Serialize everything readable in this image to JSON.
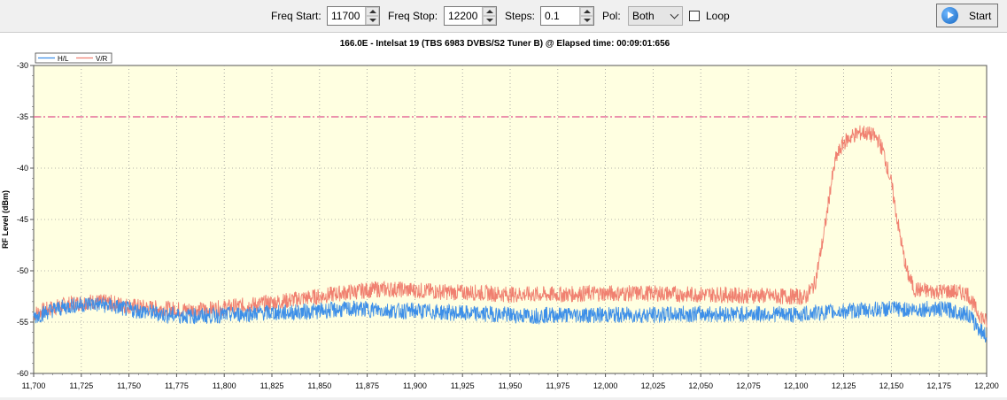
{
  "toolbar": {
    "freq_start_label": "Freq Start:",
    "freq_start_value": "11700",
    "freq_stop_label": "Freq Stop:",
    "freq_stop_value": "12200",
    "steps_label": "Steps:",
    "steps_value": "0.1",
    "pol_label": "Pol:",
    "pol_value": "Both",
    "loop_label": "Loop",
    "loop_checked": false,
    "start_label": "Start"
  },
  "chart_data": {
    "type": "line",
    "title": "166.0E - Intelsat 19 (TBS 6983 DVBS/S2 Tuner B) @ Elapsed time: 00:09:01:656",
    "xlabel": "",
    "ylabel": "RF Level (dBm)",
    "xlim": [
      11700,
      12200
    ],
    "ylim": [
      -60,
      -30
    ],
    "x_ticks": [
      "11,700",
      "11,725",
      "11,750",
      "11,775",
      "11,800",
      "11,825",
      "11,850",
      "11,875",
      "11,900",
      "11,925",
      "11,950",
      "11,975",
      "12,000",
      "12,025",
      "12,050",
      "12,075",
      "12,100",
      "12,125",
      "12,150",
      "12,175",
      "12,200"
    ],
    "y_ticks": [
      "-30",
      "-35",
      "-40",
      "-45",
      "-50",
      "-55",
      "-60"
    ],
    "grid": true,
    "legend_position": "top-left",
    "threshold": {
      "y": -35,
      "color": "#e0508c"
    },
    "series": [
      {
        "name": "H/L",
        "color": "#3d8fe8",
        "x": [
          11700,
          11710,
          11720,
          11730,
          11740,
          11750,
          11760,
          11770,
          11780,
          11790,
          11800,
          11810,
          11820,
          11830,
          11840,
          11850,
          11860,
          11870,
          11880,
          11890,
          11900,
          11910,
          11920,
          11930,
          11940,
          11950,
          11960,
          11970,
          11980,
          11990,
          12000,
          12010,
          12020,
          12030,
          12040,
          12050,
          12060,
          12070,
          12080,
          12090,
          12100,
          12110,
          12120,
          12130,
          12140,
          12150,
          12160,
          12170,
          12180,
          12190,
          12195,
          12200
        ],
        "y": [
          -54.5,
          -53.8,
          -53.4,
          -53.2,
          -53.4,
          -53.8,
          -54.0,
          -54.3,
          -54.4,
          -54.4,
          -54.3,
          -54.2,
          -54.1,
          -54.1,
          -54.0,
          -53.9,
          -53.8,
          -53.7,
          -53.8,
          -53.9,
          -53.9,
          -54.0,
          -54.1,
          -54.2,
          -54.2,
          -54.3,
          -54.4,
          -54.3,
          -54.3,
          -54.3,
          -54.3,
          -54.3,
          -54.3,
          -54.3,
          -54.2,
          -54.2,
          -54.2,
          -54.2,
          -54.2,
          -54.2,
          -54.3,
          -54.1,
          -54.0,
          -53.9,
          -53.8,
          -53.7,
          -53.8,
          -53.7,
          -53.8,
          -54.2,
          -55.4,
          -56.4
        ]
      },
      {
        "name": "V/R",
        "color": "#f08070",
        "x": [
          11700,
          11710,
          11720,
          11730,
          11740,
          11750,
          11760,
          11770,
          11780,
          11790,
          11800,
          11810,
          11820,
          11830,
          11840,
          11850,
          11860,
          11870,
          11880,
          11890,
          11900,
          11910,
          11920,
          11930,
          11940,
          11950,
          11960,
          11970,
          11980,
          11990,
          12000,
          12010,
          12020,
          12030,
          12040,
          12050,
          12060,
          12070,
          12080,
          12090,
          12100,
          12105,
          12110,
          12115,
          12118,
          12121,
          12125,
          12130,
          12135,
          12140,
          12143,
          12146,
          12150,
          12154,
          12158,
          12162,
          12170,
          12180,
          12190,
          12195,
          12200
        ],
        "y": [
          -54.2,
          -53.6,
          -53.2,
          -53.0,
          -53.1,
          -53.4,
          -53.6,
          -53.7,
          -53.8,
          -53.8,
          -53.6,
          -53.4,
          -53.2,
          -53.0,
          -52.7,
          -52.5,
          -52.2,
          -52.0,
          -51.8,
          -51.8,
          -51.9,
          -52.0,
          -52.1,
          -52.1,
          -52.2,
          -52.3,
          -52.3,
          -52.3,
          -52.3,
          -52.2,
          -52.2,
          -52.2,
          -52.2,
          -52.2,
          -52.3,
          -52.3,
          -52.3,
          -52.4,
          -52.4,
          -52.5,
          -52.5,
          -52.6,
          -51.2,
          -46.0,
          -42.0,
          -39.0,
          -37.5,
          -36.8,
          -36.5,
          -36.8,
          -37.2,
          -38.5,
          -41.5,
          -46.0,
          -50.0,
          -51.8,
          -52.0,
          -52.0,
          -52.2,
          -54.0,
          -55.0
        ]
      }
    ]
  }
}
